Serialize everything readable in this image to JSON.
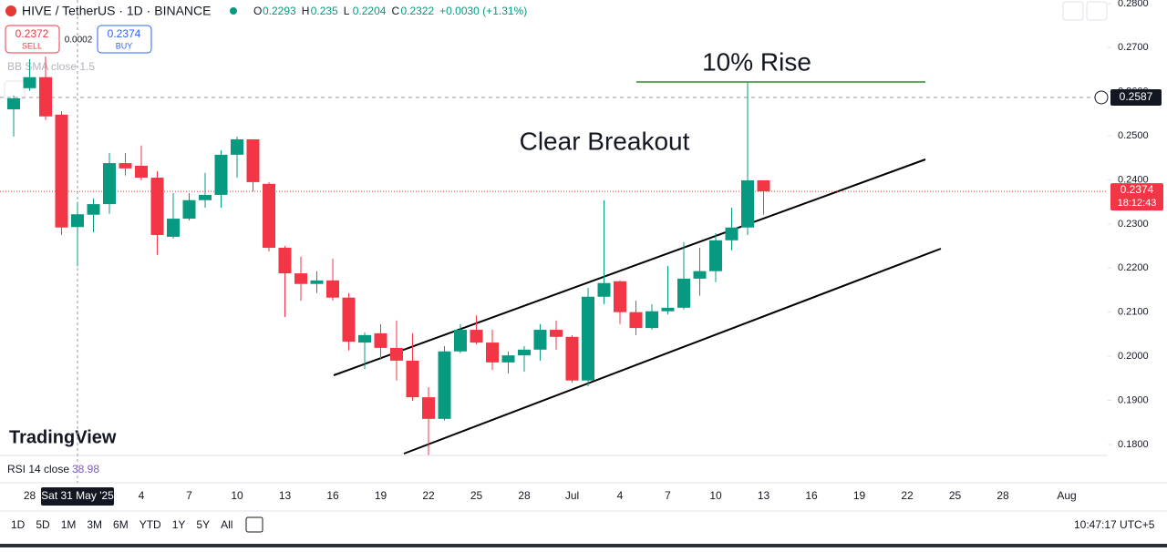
{
  "ui": {
    "symbol": "HIVE / TetherUS · 1D · BINANCE",
    "legend": [
      {
        "label": "O",
        "value": 0.2293
      },
      {
        "label": "H",
        "value": 0.235
      },
      {
        "label": "L",
        "value": 0.2204
      },
      {
        "label": "C",
        "value": 0.2322
      }
    ],
    "change": "+0.0030 (+1.31%)",
    "sell": {
      "price": 0.2372,
      "label": "SELL"
    },
    "spread": "0.0002",
    "buy": {
      "price": 0.2374,
      "label": "BUY"
    },
    "indicator": "BB SMA close 1.5",
    "rsi": {
      "label": "RSI 14 close",
      "value": 38.98
    },
    "logo": "TradingView",
    "timeframes": [
      "1D",
      "5D",
      "1M",
      "3M",
      "6M",
      "YTD",
      "1Y",
      "5Y",
      "All"
    ],
    "clock": "10:47:17 UTC+5"
  },
  "chart_data": {
    "type": "candlestick",
    "up_color": "#089981",
    "down_color": "#f23645",
    "categories": [
      null,
      "28",
      null,
      null,
      "Sat 31 May '25",
      null,
      null,
      null,
      "4",
      null,
      null,
      "7",
      null,
      null,
      "10",
      null,
      null,
      "13",
      null,
      null,
      "16",
      null,
      null,
      "19",
      null,
      null,
      "22",
      null,
      null,
      "25",
      null,
      null,
      "28",
      null,
      null,
      "Jul",
      null,
      null,
      "4",
      null,
      null,
      "7",
      null,
      null,
      "10",
      null,
      null,
      "13",
      null,
      null,
      "16",
      null,
      null,
      "19",
      null,
      null,
      "22",
      null,
      null,
      "25",
      null,
      null,
      "28",
      null,
      null,
      null,
      "Aug"
    ],
    "open": [
      0.256,
      0.2608,
      0.2633,
      0.2548,
      0.2293,
      0.2321,
      0.2345,
      0.2438,
      0.2432,
      0.2405,
      0.2271,
      0.2312,
      0.2354,
      0.2366,
      0.2457,
      0.2492,
      0.2391,
      0.2246,
      0.2188,
      0.2164,
      0.2172,
      0.2133,
      0.2031,
      0.2052,
      0.2019,
      0.199,
      0.1907,
      0.1858,
      0.2011,
      0.206,
      0.2031,
      0.1986,
      0.2002,
      0.2015,
      0.206,
      0.2044,
      0.1945,
      0.2135,
      0.217,
      0.21,
      0.2064,
      0.2102,
      0.211,
      0.2176,
      0.2193,
      0.2263,
      0.2292,
      0.2399,
      null,
      null,
      null,
      null,
      null,
      null,
      null,
      null,
      null,
      null,
      null,
      null,
      null,
      null,
      null,
      null,
      null,
      null,
      null
    ],
    "high": [
      0.2591,
      0.2674,
      0.268,
      0.2556,
      0.235,
      0.2358,
      0.2461,
      0.2461,
      0.2478,
      0.242,
      0.237,
      0.237,
      0.2416,
      0.2467,
      0.2498,
      0.2492,
      0.2395,
      0.225,
      0.2226,
      0.2193,
      0.2221,
      0.2143,
      0.2054,
      0.2073,
      0.2081,
      0.2052,
      0.193,
      0.2023,
      0.2073,
      0.2093,
      0.206,
      0.2011,
      0.2023,
      0.2073,
      0.2081,
      0.2048,
      0.2155,
      0.2354,
      0.2172,
      0.2126,
      0.2118,
      0.2205,
      0.2259,
      0.2246,
      0.2279,
      0.2337,
      0.2622,
      0.2399,
      null,
      null,
      null,
      null,
      null,
      null,
      null,
      null,
      null,
      null,
      null,
      null,
      null,
      null,
      null,
      null,
      null,
      null,
      null
    ],
    "low": [
      0.2498,
      0.2602,
      0.2536,
      0.2275,
      0.2204,
      0.2281,
      0.2323,
      0.241,
      0.2399,
      0.223,
      0.2267,
      0.2308,
      0.2337,
      0.2337,
      0.2405,
      0.2374,
      0.2238,
      0.2089,
      0.2126,
      0.2143,
      0.2126,
      0.2013,
      0.1971,
      0.1992,
      0.1945,
      0.1899,
      0.1776,
      0.1854,
      0.2007,
      0.2027,
      0.1969,
      0.1961,
      0.1965,
      0.199,
      0.2015,
      0.194,
      0.1932,
      0.2118,
      0.2073,
      0.2048,
      0.206,
      0.2095,
      0.2106,
      0.2137,
      0.2168,
      0.224,
      0.2275,
      0.2321,
      null,
      null,
      null,
      null,
      null,
      null,
      null,
      null,
      null,
      null,
      null,
      null,
      null,
      null,
      null,
      null,
      null,
      null,
      null
    ],
    "close": [
      0.2585,
      0.2633,
      0.2544,
      0.2292,
      0.2322,
      0.2345,
      0.2438,
      0.2426,
      0.2405,
      0.2275,
      0.2312,
      0.2354,
      0.2366,
      0.2457,
      0.2492,
      0.2395,
      0.2246,
      0.2188,
      0.2164,
      0.2172,
      0.2133,
      0.2033,
      0.2048,
      0.2019,
      0.199,
      0.1907,
      0.1858,
      0.2011,
      0.206,
      0.2031,
      0.1986,
      0.2002,
      0.2015,
      0.206,
      0.2044,
      0.1945,
      0.2135,
      0.2166,
      0.21,
      0.2064,
      0.2102,
      0.211,
      0.2176,
      0.2193,
      0.2263,
      0.2292,
      0.2399,
      0.2374,
      null,
      null,
      null,
      null,
      null,
      null,
      null,
      null,
      null,
      null,
      null,
      null,
      null,
      null,
      null,
      null,
      null,
      null,
      null
    ],
    "ylim": [
      0.1775,
      0.2808
    ],
    "yticks": [
      {
        "value": 0.18,
        "label": "0.1800"
      },
      {
        "value": 0.19,
        "label": "0.1900"
      },
      {
        "value": 0.2,
        "label": "0.2000"
      },
      {
        "value": 0.21,
        "label": "0.2100"
      },
      {
        "value": 0.22,
        "label": "0.2200"
      },
      {
        "value": 0.23,
        "label": "0.2300"
      },
      {
        "value": 0.24,
        "label": "0.2400"
      },
      {
        "value": 0.25,
        "label": "0.2500"
      },
      {
        "value": 0.26,
        "label": "0.2600"
      },
      {
        "value": 0.27,
        "label": "0.2700"
      },
      {
        "value": 0.28,
        "label": "0.2800"
      }
    ],
    "crosshair_price": 0.2587,
    "last_price": 0.2374,
    "countdown": "18:12:43",
    "annotations": [
      "10% Rise",
      "Clear Breakout"
    ]
  }
}
